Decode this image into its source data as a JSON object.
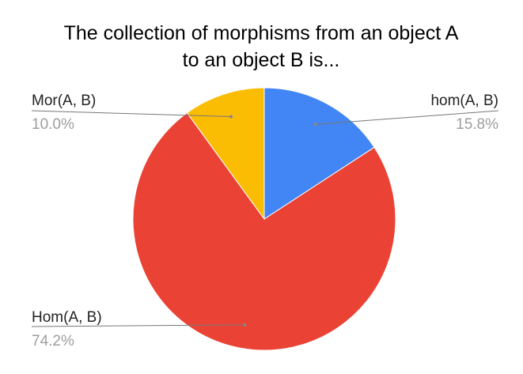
{
  "chart_data": {
    "type": "pie",
    "title_lines": [
      "The collection of morphisms from an object A",
      "to an object B is..."
    ],
    "slices": [
      {
        "label": "hom(A, B)",
        "value": 15.8,
        "value_label": "15.8%",
        "color": "#4285f4"
      },
      {
        "label": "Hom(A, B)",
        "value": 74.2,
        "value_label": "74.2%",
        "color": "#ea4335"
      },
      {
        "label": "Mor(A, B)",
        "value": 10.0,
        "value_label": "10.0%",
        "color": "#fbbc04"
      }
    ],
    "start_angle": "top",
    "direction": "clockwise",
    "legend": "none"
  }
}
